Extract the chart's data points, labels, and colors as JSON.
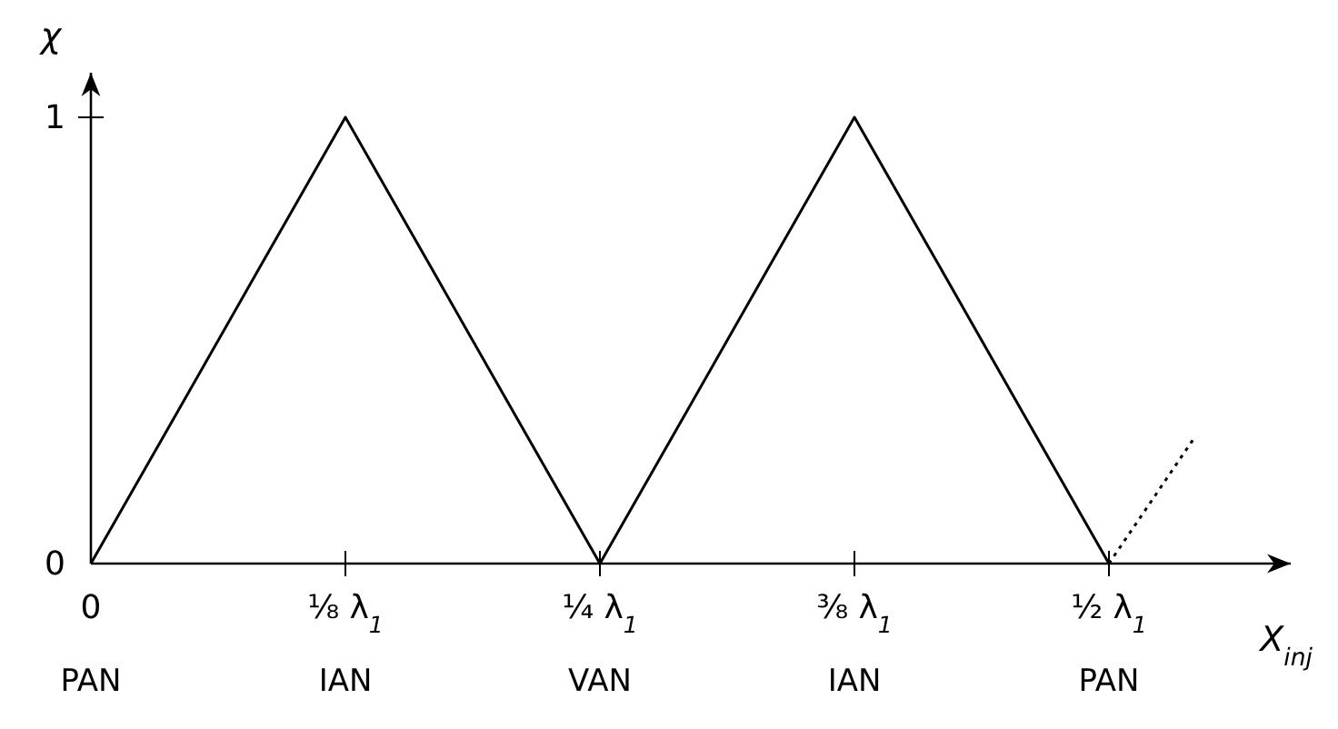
{
  "chart_data": {
    "type": "line",
    "xlabel": "X$_{inj}$",
    "ylabel": "χ",
    "categories": [
      "0",
      null,
      null,
      "⅛ λ$_{1}$",
      null,
      null,
      "¼ λ$_{1}$",
      null,
      null,
      "⅜ λ$_{1}$",
      null,
      null,
      "½ λ$_{1}$",
      null
    ],
    "ylim": [
      0,
      1.1
    ],
    "yticks": [
      0,
      1
    ],
    "series": [
      {
        "color": "#000000",
        "values": [
          0,
          0.333,
          0.667,
          1,
          0.667,
          0.333,
          0,
          0.333,
          0.667,
          1,
          0.667,
          0.333,
          0,
          null
        ],
        "line_style": "solid"
      },
      {
        "color": "#000000",
        "values": [
          null,
          null,
          null,
          null,
          null,
          null,
          null,
          null,
          null,
          null,
          null,
          null,
          0,
          0.28
        ],
        "line_style": "dotted"
      }
    ],
    "annotations": [
      "PAN",
      "IAN",
      "VAN",
      "IAN",
      "PAN"
    ],
    "grid": false,
    "marker": "none"
  }
}
